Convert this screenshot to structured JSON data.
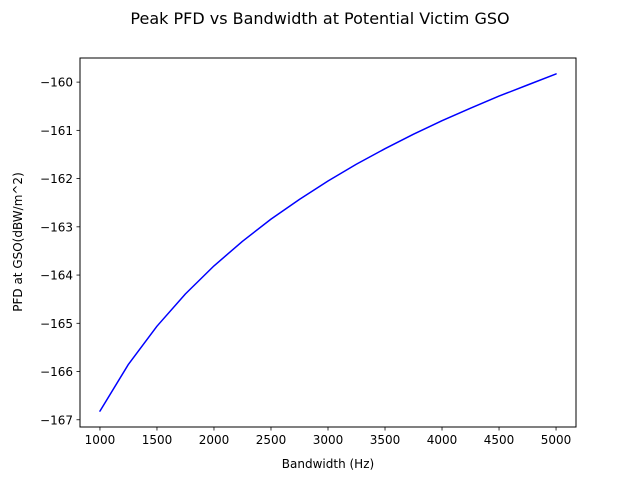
{
  "chart_data": {
    "type": "line",
    "title": "Peak PFD vs Bandwidth at Potential Victim GSO",
    "xlabel": "Bandwidth (Hz)",
    "ylabel": "PFD at GSO(dBW/m^2)",
    "xlim": [
      825,
      5175
    ],
    "ylim": [
      -167.15,
      -159.5
    ],
    "x_ticks": [
      1000,
      1500,
      2000,
      2500,
      3000,
      3500,
      4000,
      4500,
      5000
    ],
    "x_tick_labels": [
      "1000",
      "1500",
      "2000",
      "2500",
      "3000",
      "3500",
      "4000",
      "4500",
      "5000"
    ],
    "y_ticks": [
      -167,
      -166,
      -165,
      -164,
      -163,
      -162,
      -161,
      -160
    ],
    "y_tick_labels": [
      "−167",
      "−166",
      "−165",
      "−164",
      "−163",
      "−162",
      "−161",
      "−160"
    ],
    "grid": false,
    "series": [
      {
        "color": "#0000ff",
        "x": [
          1000,
          1250,
          1500,
          1750,
          2000,
          2250,
          2500,
          2750,
          3000,
          3250,
          3500,
          3750,
          4000,
          4250,
          4500,
          4750,
          5000
        ],
        "y": [
          -166.82,
          -165.85,
          -165.06,
          -164.39,
          -163.81,
          -163.3,
          -162.84,
          -162.43,
          -162.05,
          -161.7,
          -161.38,
          -161.08,
          -160.8,
          -160.54,
          -160.29,
          -160.06,
          -159.83
        ]
      }
    ]
  }
}
